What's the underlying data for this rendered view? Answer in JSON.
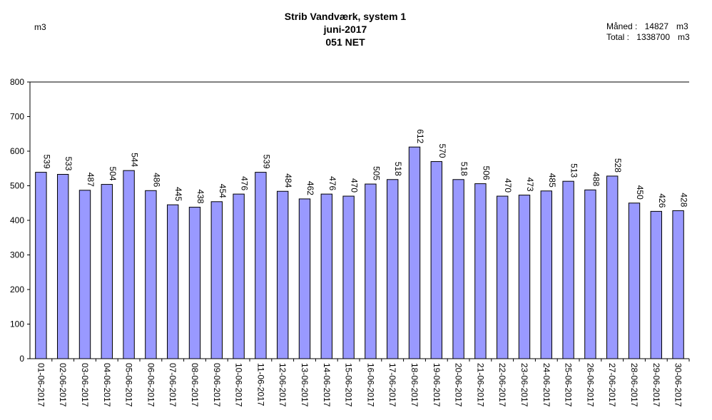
{
  "chart_data": {
    "type": "bar",
    "title": [
      "Strib Vandværk, system 1",
      "juni-2017",
      "051 NET"
    ],
    "unit_label": "m3",
    "summary": {
      "month_label": "Måned :",
      "month_value": "14827",
      "total_label": "Total :",
      "total_value": "1338700",
      "unit": "m3"
    },
    "ylim": [
      0,
      800
    ],
    "yticks": [
      0,
      100,
      200,
      300,
      400,
      500,
      600,
      700,
      800
    ],
    "bar_color": "#9999ff",
    "categories": [
      "01-06-2017",
      "02-06-2017",
      "03-06-2017",
      "04-06-2017",
      "05-06-2017",
      "06-06-2017",
      "07-06-2017",
      "08-06-2017",
      "09-06-2017",
      "10-06-2017",
      "11-06-2017",
      "12-06-2017",
      "13-06-2017",
      "14-06-2017",
      "15-06-2017",
      "16-06-2017",
      "17-06-2017",
      "18-06-2017",
      "19-06-2017",
      "20-06-2017",
      "21-06-2017",
      "22-06-2017",
      "23-06-2017",
      "24-06-2017",
      "25-06-2017",
      "26-06-2017",
      "27-06-2017",
      "28-06-2017",
      "29-06-2017",
      "30-06-2017"
    ],
    "values": [
      539,
      533,
      487,
      504,
      544,
      486,
      445,
      438,
      454,
      476,
      539,
      484,
      462,
      476,
      470,
      505,
      518,
      612,
      570,
      518,
      506,
      470,
      473,
      485,
      513,
      488,
      528,
      450,
      426,
      428
    ]
  }
}
